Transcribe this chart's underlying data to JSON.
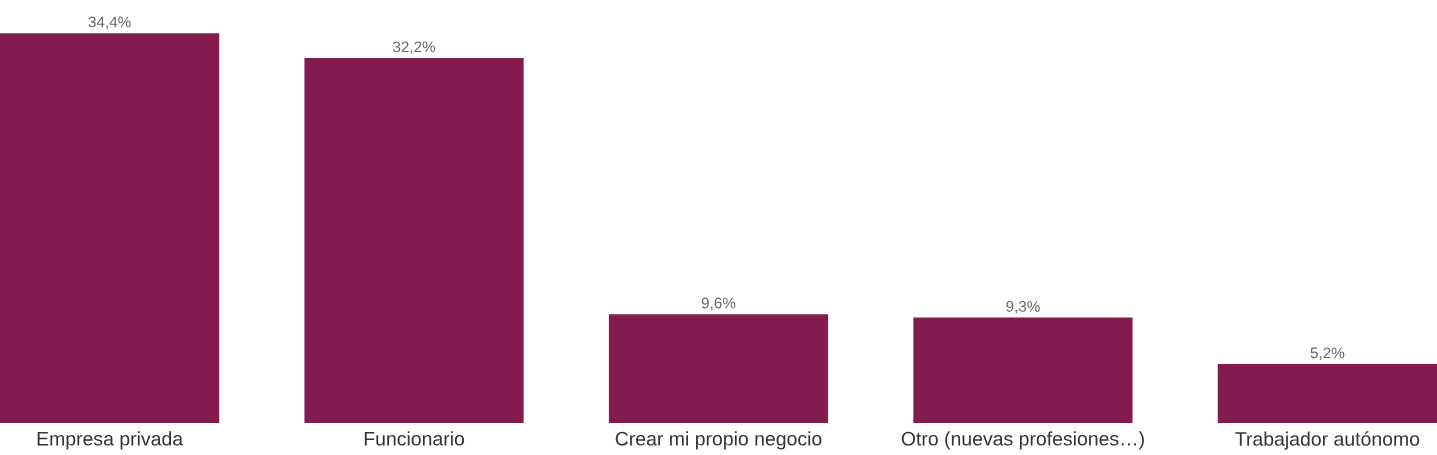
{
  "chart_data": {
    "type": "bar",
    "categories": [
      "Empresa privada",
      "Funcionario",
      "Crear mi propio negocio",
      "Otro (nuevas profesiones…)",
      "Trabajador autónomo"
    ],
    "values": [
      34.4,
      32.2,
      9.6,
      9.3,
      5.2
    ],
    "value_labels": [
      "34,4%",
      "32,2%",
      "9,6%",
      "9,3%",
      "5,2%"
    ],
    "color": "#821c4e",
    "grid": false,
    "legend": false
  }
}
